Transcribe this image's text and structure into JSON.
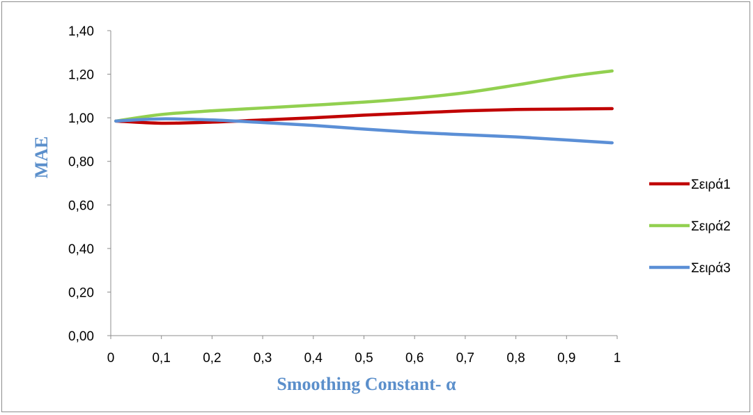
{
  "chart_data": {
    "type": "line",
    "title": "",
    "xlabel": "Smoothing Constant- α",
    "ylabel": "MAE",
    "xlim": [
      0,
      1
    ],
    "ylim": [
      0,
      1.4
    ],
    "x_ticks": [
      "0",
      "0,1",
      "0,2",
      "0,3",
      "0,4",
      "0,5",
      "0,6",
      "0,7",
      "0,8",
      "0,9",
      "1"
    ],
    "y_ticks": [
      "0,00",
      "0,20",
      "0,40",
      "0,60",
      "0,80",
      "1,00",
      "1,20",
      "1,40"
    ],
    "grid": false,
    "legend_position": "right",
    "x": [
      0.01,
      0.1,
      0.2,
      0.3,
      0.4,
      0.5,
      0.6,
      0.7,
      0.8,
      0.9,
      0.99
    ],
    "series": [
      {
        "name": "Σειρά1",
        "color": "#c00000",
        "values": [
          0.985,
          0.975,
          0.98,
          0.99,
          1.0,
          1.012,
          1.022,
          1.032,
          1.038,
          1.04,
          1.042
        ]
      },
      {
        "name": "Σειρά2",
        "color": "#92d050",
        "values": [
          0.985,
          1.015,
          1.032,
          1.045,
          1.058,
          1.072,
          1.09,
          1.115,
          1.15,
          1.188,
          1.215
        ]
      },
      {
        "name": "Σειρά3",
        "color": "#5b8fd6",
        "values": [
          0.985,
          0.995,
          0.99,
          0.978,
          0.965,
          0.948,
          0.933,
          0.922,
          0.912,
          0.898,
          0.885
        ]
      }
    ]
  }
}
